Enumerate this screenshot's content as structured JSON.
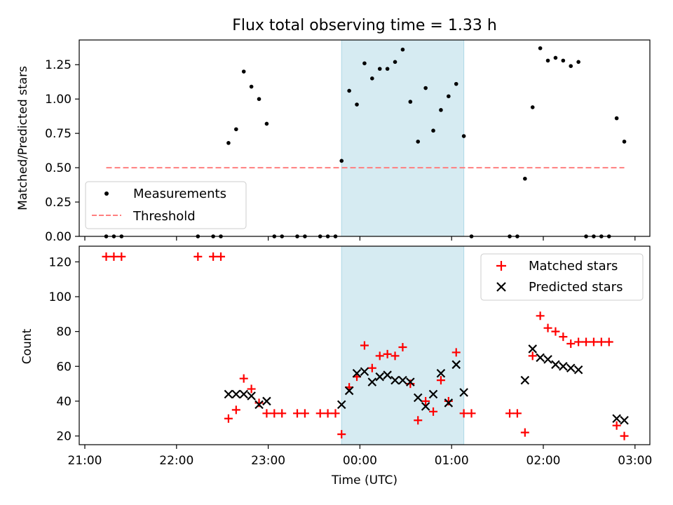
{
  "chart_data": [
    {
      "type": "scatter",
      "title": "Flux total observing time = 1.33 h",
      "xlabel": "",
      "ylabel": "Matched/Predicted stars",
      "xlim": [
        "21:00",
        "03:00"
      ],
      "ylim": [
        0,
        1.43
      ],
      "yticks": [
        "0.00",
        "0.25",
        "0.50",
        "0.75",
        "1.00",
        "1.25"
      ],
      "highlight_span": {
        "start": "23:48",
        "end": "01:08",
        "color": "#add8e6"
      },
      "legend_position": "lower-left",
      "series": [
        {
          "name": "Measurements",
          "color": "#000000",
          "marker": "dot",
          "points": [
            [
              "21:14",
              0
            ],
            [
              "21:19",
              0
            ],
            [
              "21:24",
              0
            ],
            [
              "22:14",
              0
            ],
            [
              "22:24",
              0
            ],
            [
              "22:29",
              0
            ],
            [
              "22:34",
              0.68
            ],
            [
              "22:39",
              0.78
            ],
            [
              "22:44",
              1.2
            ],
            [
              "22:49",
              1.09
            ],
            [
              "22:54",
              1.0
            ],
            [
              "22:59",
              0.82
            ],
            [
              "23:04",
              0
            ],
            [
              "23:09",
              0
            ],
            [
              "23:19",
              0
            ],
            [
              "23:24",
              0
            ],
            [
              "23:34",
              0
            ],
            [
              "23:39",
              0
            ],
            [
              "23:44",
              0
            ],
            [
              "23:48",
              0.55
            ],
            [
              "23:53",
              1.06
            ],
            [
              "23:58",
              0.96
            ],
            [
              "00:03",
              1.26
            ],
            [
              "00:08",
              1.15
            ],
            [
              "00:13",
              1.22
            ],
            [
              "00:18",
              1.22
            ],
            [
              "00:23",
              1.27
            ],
            [
              "00:28",
              1.36
            ],
            [
              "00:33",
              0.98
            ],
            [
              "00:38",
              0.69
            ],
            [
              "00:43",
              1.08
            ],
            [
              "00:48",
              0.77
            ],
            [
              "00:53",
              0.92
            ],
            [
              "00:58",
              1.02
            ],
            [
              "01:03",
              1.11
            ],
            [
              "01:08",
              0.73
            ],
            [
              "01:13",
              0
            ],
            [
              "01:38",
              0
            ],
            [
              "01:43",
              0
            ],
            [
              "01:48",
              0.42
            ],
            [
              "01:53",
              0.94
            ],
            [
              "01:58",
              1.37
            ],
            [
              "02:03",
              1.28
            ],
            [
              "02:08",
              1.3
            ],
            [
              "02:13",
              1.28
            ],
            [
              "02:18",
              1.24
            ],
            [
              "02:23",
              1.27
            ],
            [
              "02:28",
              0
            ],
            [
              "02:33",
              0
            ],
            [
              "02:38",
              0
            ],
            [
              "02:43",
              0
            ],
            [
              "02:48",
              0.86
            ],
            [
              "02:53",
              0.69
            ]
          ]
        },
        {
          "name": "Threshold",
          "color": "#ff7f7f",
          "style": "dashed",
          "points": [
            [
              "21:14",
              0.5
            ],
            [
              "02:53",
              0.5
            ]
          ]
        }
      ]
    },
    {
      "type": "scatter",
      "title": "",
      "xlabel": "Time (UTC)",
      "ylabel": "Count",
      "xlim": [
        "21:00",
        "03:00"
      ],
      "ylim": [
        15,
        129
      ],
      "yticks": [
        "20",
        "40",
        "60",
        "80",
        "100",
        "120"
      ],
      "xticks": [
        "21:00",
        "22:00",
        "23:00",
        "00:00",
        "01:00",
        "02:00",
        "03:00"
      ],
      "highlight_span": {
        "start": "23:48",
        "end": "01:08",
        "color": "#add8e6"
      },
      "legend_position": "upper-right",
      "series": [
        {
          "name": "Matched stars",
          "color": "#ff0000",
          "marker": "plus",
          "points": [
            [
              "21:14",
              123
            ],
            [
              "21:19",
              123
            ],
            [
              "21:24",
              123
            ],
            [
              "22:14",
              123
            ],
            [
              "22:24",
              123
            ],
            [
              "22:29",
              123
            ],
            [
              "22:34",
              30
            ],
            [
              "22:39",
              35
            ],
            [
              "22:44",
              53
            ],
            [
              "22:49",
              47
            ],
            [
              "22:54",
              39
            ],
            [
              "22:59",
              33
            ],
            [
              "23:04",
              33
            ],
            [
              "23:09",
              33
            ],
            [
              "23:19",
              33
            ],
            [
              "23:24",
              33
            ],
            [
              "23:34",
              33
            ],
            [
              "23:39",
              33
            ],
            [
              "23:44",
              33
            ],
            [
              "23:48",
              21
            ],
            [
              "23:53",
              48
            ],
            [
              "23:58",
              54
            ],
            [
              "00:03",
              72
            ],
            [
              "00:08",
              59
            ],
            [
              "00:13",
              66
            ],
            [
              "00:18",
              67
            ],
            [
              "00:23",
              66
            ],
            [
              "00:28",
              71
            ],
            [
              "00:33",
              50
            ],
            [
              "00:38",
              29
            ],
            [
              "00:43",
              40
            ],
            [
              "00:48",
              34
            ],
            [
              "00:53",
              52
            ],
            [
              "00:58",
              40
            ],
            [
              "01:03",
              68
            ],
            [
              "01:08",
              33
            ],
            [
              "01:13",
              33
            ],
            [
              "01:38",
              33
            ],
            [
              "01:43",
              33
            ],
            [
              "01:48",
              22
            ],
            [
              "01:53",
              66
            ],
            [
              "01:58",
              89
            ],
            [
              "02:03",
              82
            ],
            [
              "02:08",
              80
            ],
            [
              "02:13",
              77
            ],
            [
              "02:18",
              73
            ],
            [
              "02:23",
              74
            ],
            [
              "02:28",
              74
            ],
            [
              "02:33",
              74
            ],
            [
              "02:38",
              74
            ],
            [
              "02:43",
              74
            ],
            [
              "02:48",
              26
            ],
            [
              "02:53",
              20
            ]
          ]
        },
        {
          "name": "Predicted stars",
          "color": "#000000",
          "marker": "x",
          "points": [
            [
              "22:34",
              44
            ],
            [
              "22:39",
              44
            ],
            [
              "22:44",
              44
            ],
            [
              "22:49",
              43
            ],
            [
              "22:54",
              38
            ],
            [
              "22:59",
              40
            ],
            [
              "23:48",
              38
            ],
            [
              "23:53",
              46
            ],
            [
              "23:58",
              56
            ],
            [
              "00:03",
              57
            ],
            [
              "00:08",
              51
            ],
            [
              "00:13",
              54
            ],
            [
              "00:18",
              55
            ],
            [
              "00:23",
              52
            ],
            [
              "00:28",
              52
            ],
            [
              "00:33",
              51
            ],
            [
              "00:38",
              42
            ],
            [
              "00:43",
              37
            ],
            [
              "00:48",
              44
            ],
            [
              "00:53",
              56
            ],
            [
              "00:58",
              39
            ],
            [
              "01:03",
              61
            ],
            [
              "01:08",
              45
            ],
            [
              "01:48",
              52
            ],
            [
              "01:53",
              70
            ],
            [
              "01:58",
              65
            ],
            [
              "02:03",
              64
            ],
            [
              "02:08",
              61
            ],
            [
              "02:13",
              60
            ],
            [
              "02:18",
              59
            ],
            [
              "02:23",
              58
            ],
            [
              "02:48",
              30
            ],
            [
              "02:53",
              29
            ]
          ]
        }
      ]
    }
  ]
}
